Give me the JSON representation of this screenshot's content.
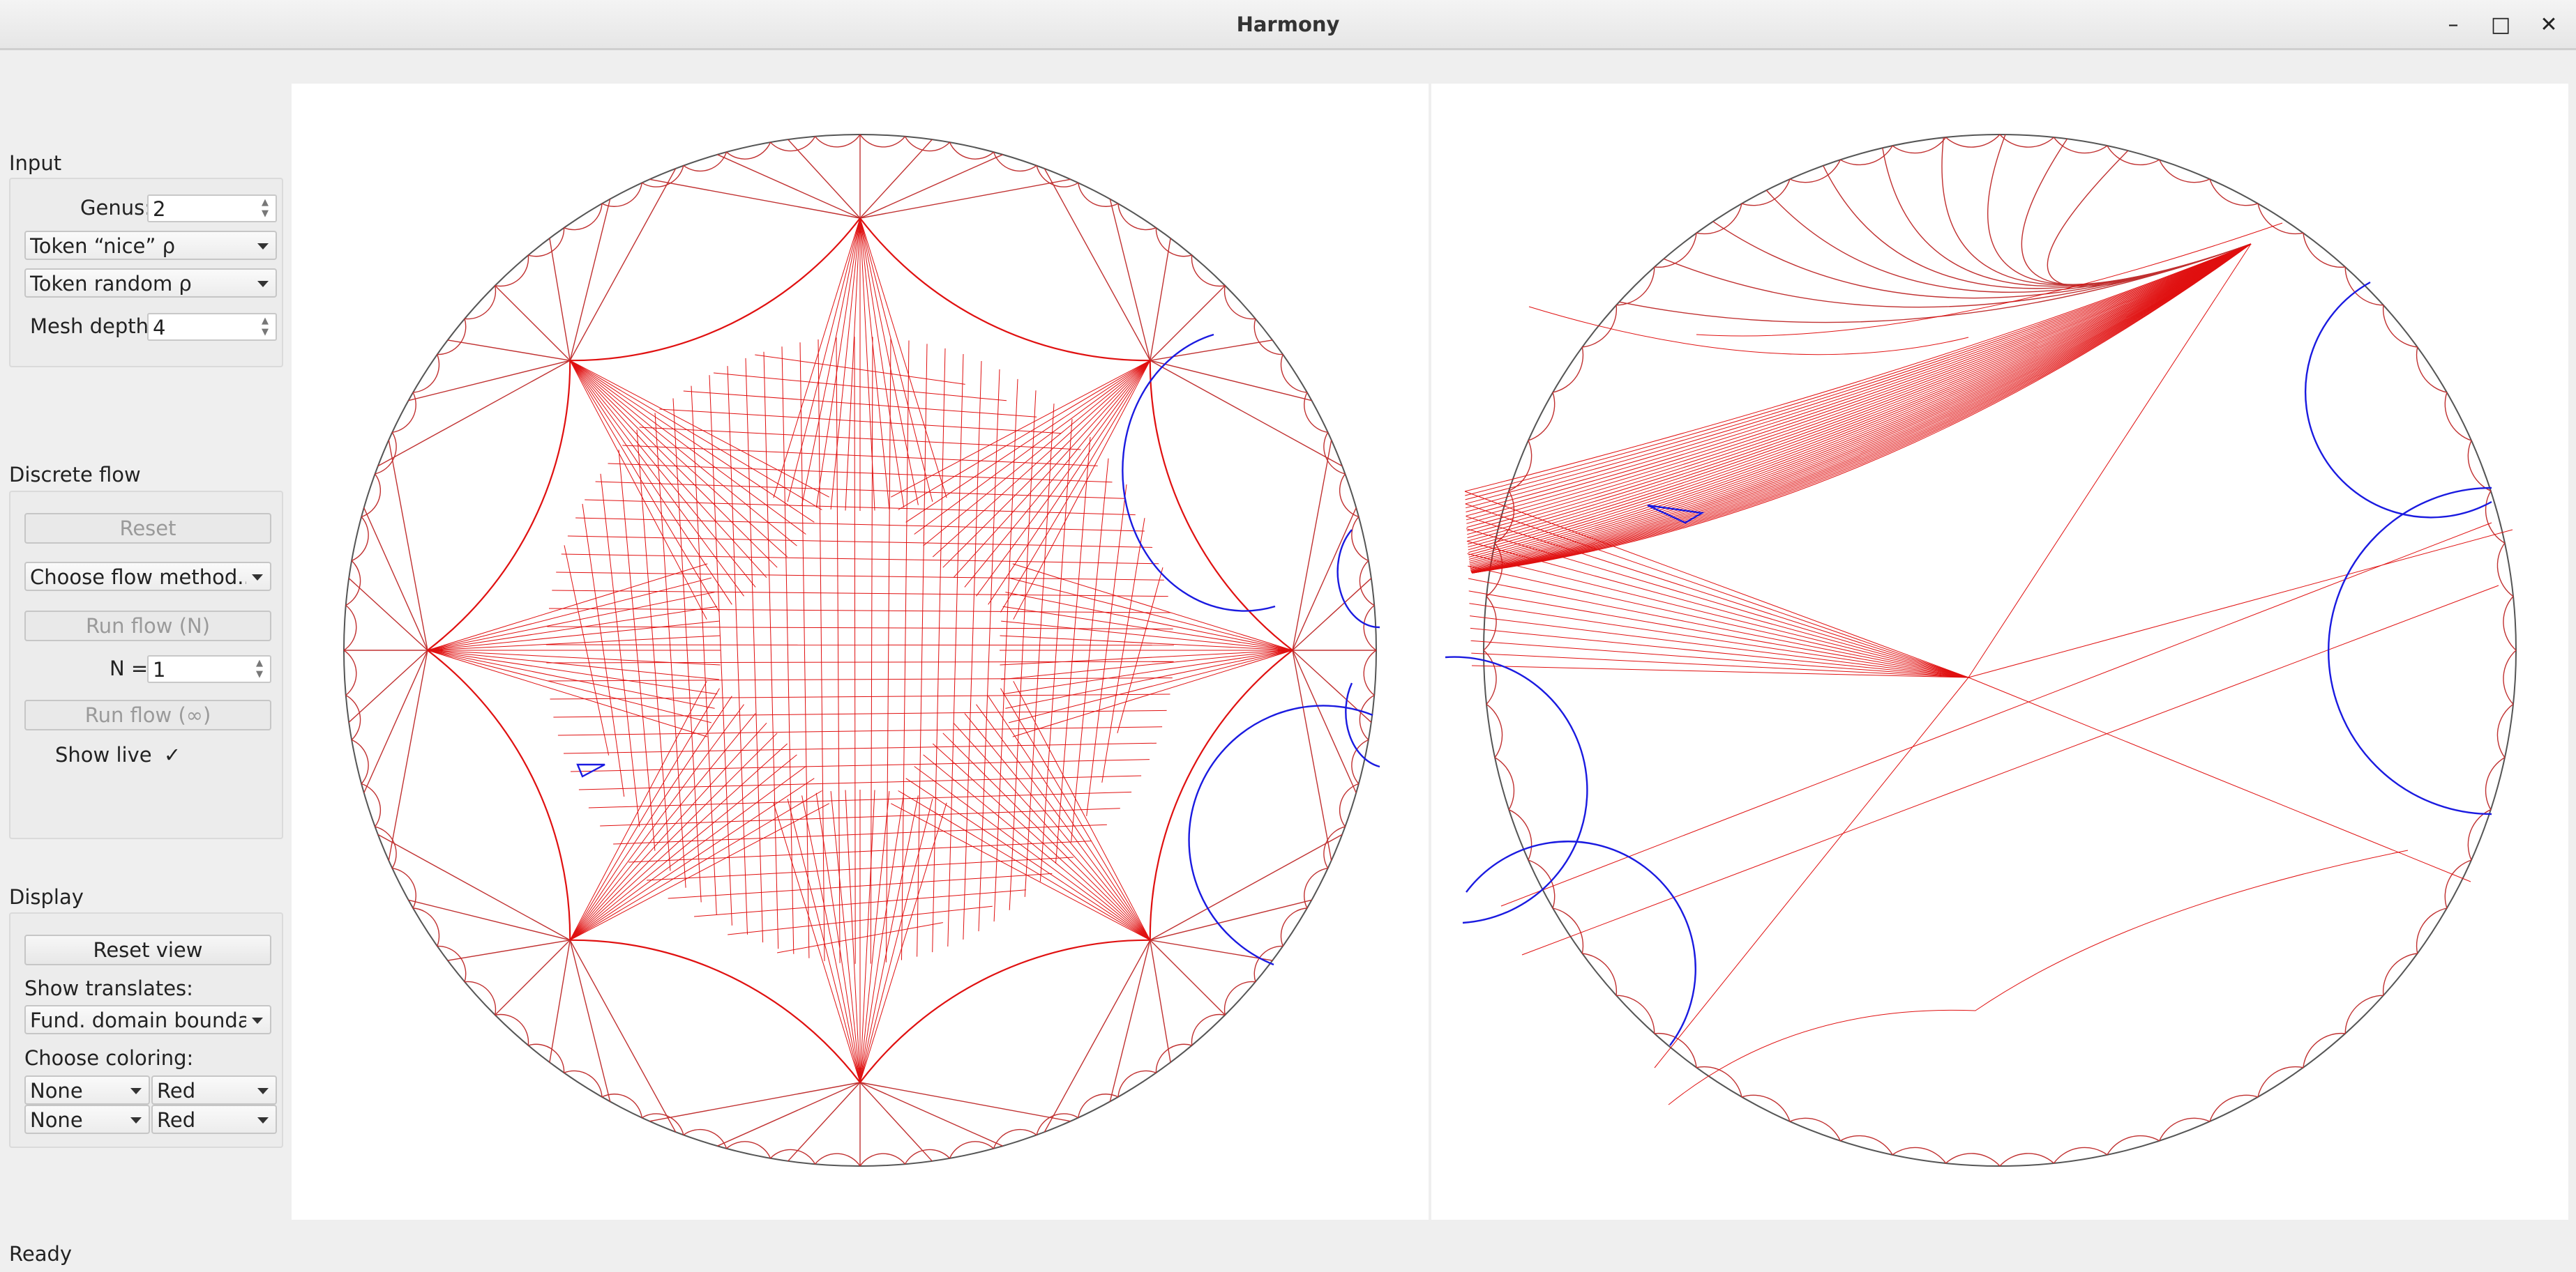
{
  "window": {
    "title": "Harmony"
  },
  "window_controls": {
    "minimize": "–",
    "maximize": "□",
    "close": "✕"
  },
  "input": {
    "section": "Input",
    "genus_label": "Genus:",
    "genus_value": "2",
    "rho_nice": "Token “nice” ρ",
    "rho_random": "Token random ρ",
    "mesh_depth_label": "Mesh depth:",
    "mesh_depth_value": "4"
  },
  "flow": {
    "section": "Discrete flow",
    "reset": "Reset",
    "method": "Choose flow method...",
    "run_n": "Run flow (N)",
    "n_label": "N =",
    "n_value": "1",
    "run_inf": "Run flow (∞)",
    "show_live_label": "Show live",
    "show_live_mark": "✓"
  },
  "display": {
    "section": "Display",
    "reset_view": "Reset view",
    "show_translates_label": "Show translates:",
    "show_translates_value": "Fund. domain boundary",
    "coloring_label": "Choose coloring:",
    "coloring": [
      {
        "source": "None",
        "color": "Red"
      },
      {
        "source": "None",
        "color": "Red"
      }
    ]
  },
  "status": "Ready",
  "colors": {
    "mesh": "#e01010",
    "boundary": "#1a1ae0",
    "disk": "#555555",
    "background": "#efefef"
  },
  "icons": [
    "minimize-icon",
    "maximize-icon",
    "close-icon",
    "chevron-down-icon",
    "spin-arrows-icon",
    "check-icon"
  ]
}
